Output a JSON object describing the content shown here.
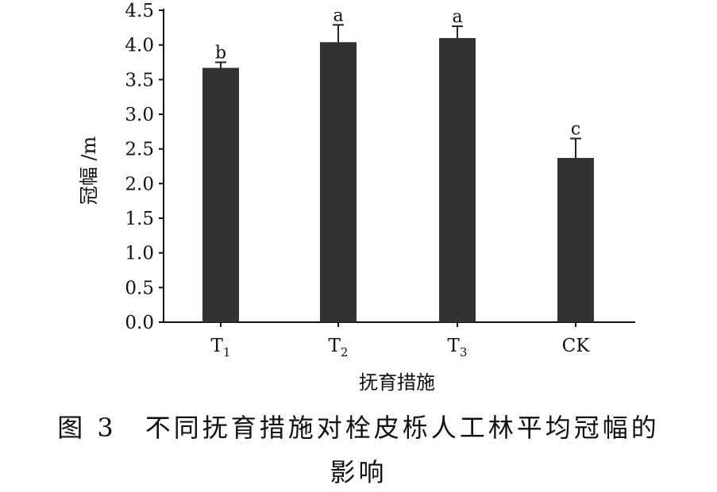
{
  "chart_data": {
    "type": "bar",
    "categories": [
      "T1",
      "T2",
      "T3",
      "CK"
    ],
    "category_labels": [
      {
        "main": "T",
        "sub": "1"
      },
      {
        "main": "T",
        "sub": "2"
      },
      {
        "main": "T",
        "sub": "3"
      },
      {
        "main": "CK",
        "sub": ""
      }
    ],
    "values": [
      3.67,
      4.04,
      4.1,
      2.37
    ],
    "errors": [
      0.08,
      0.25,
      0.17,
      0.28
    ],
    "significance": [
      "b",
      "a",
      "a",
      "c"
    ],
    "ylabel": "冠幅 /m",
    "xlabel": "抚育措施",
    "ylim": [
      0,
      4.5
    ],
    "yticks": [
      "0.0",
      "0.5",
      "1.0",
      "1.5",
      "2.0",
      "2.5",
      "3.0",
      "3.5",
      "4.0",
      "4.5"
    ],
    "bar_color": "#333333",
    "grid": false
  },
  "caption": {
    "line1": "图 3　不同抚育措施对栓皮栎人工林平均冠幅的",
    "line2": "影响"
  }
}
